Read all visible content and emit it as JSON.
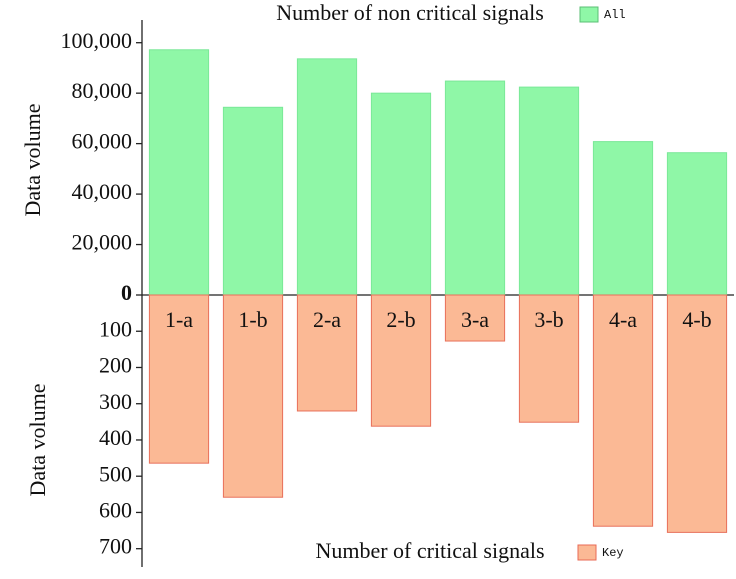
{
  "chart_data": [
    {
      "type": "bar",
      "title": "Number of non critical signals",
      "y_label": "Data volume",
      "categories": [
        "1-a",
        "1-b",
        "2-a",
        "2-b",
        "3-a",
        "3-b",
        "4-a",
        "4-b"
      ],
      "series": [
        {
          "name": "All",
          "color": "#8ff7a7",
          "values": [
            97200,
            74400,
            93600,
            80000,
            84800,
            82400,
            60800,
            56400
          ]
        }
      ],
      "ylim": [
        0,
        109000
      ],
      "yticks": [
        0,
        {
          "value": 20000,
          "label": "20,000"
        },
        {
          "value": 40000,
          "label": "40,000"
        },
        {
          "value": 60000,
          "label": "60,000"
        },
        {
          "value": 80000,
          "label": "80,000"
        },
        {
          "value": 100000,
          "label": "100,000"
        }
      ]
    },
    {
      "type": "bar",
      "title": "Number of critical signals",
      "y_label": "Data volume",
      "inverted": true,
      "series": [
        {
          "name": "Key",
          "color": "#fbb995",
          "values": [
            464,
            558,
            320,
            362,
            127,
            351,
            638,
            655
          ]
        }
      ],
      "ylim": [
        0,
        745
      ],
      "yticks": [
        100,
        200,
        300,
        400,
        500,
        600,
        700
      ]
    }
  ]
}
